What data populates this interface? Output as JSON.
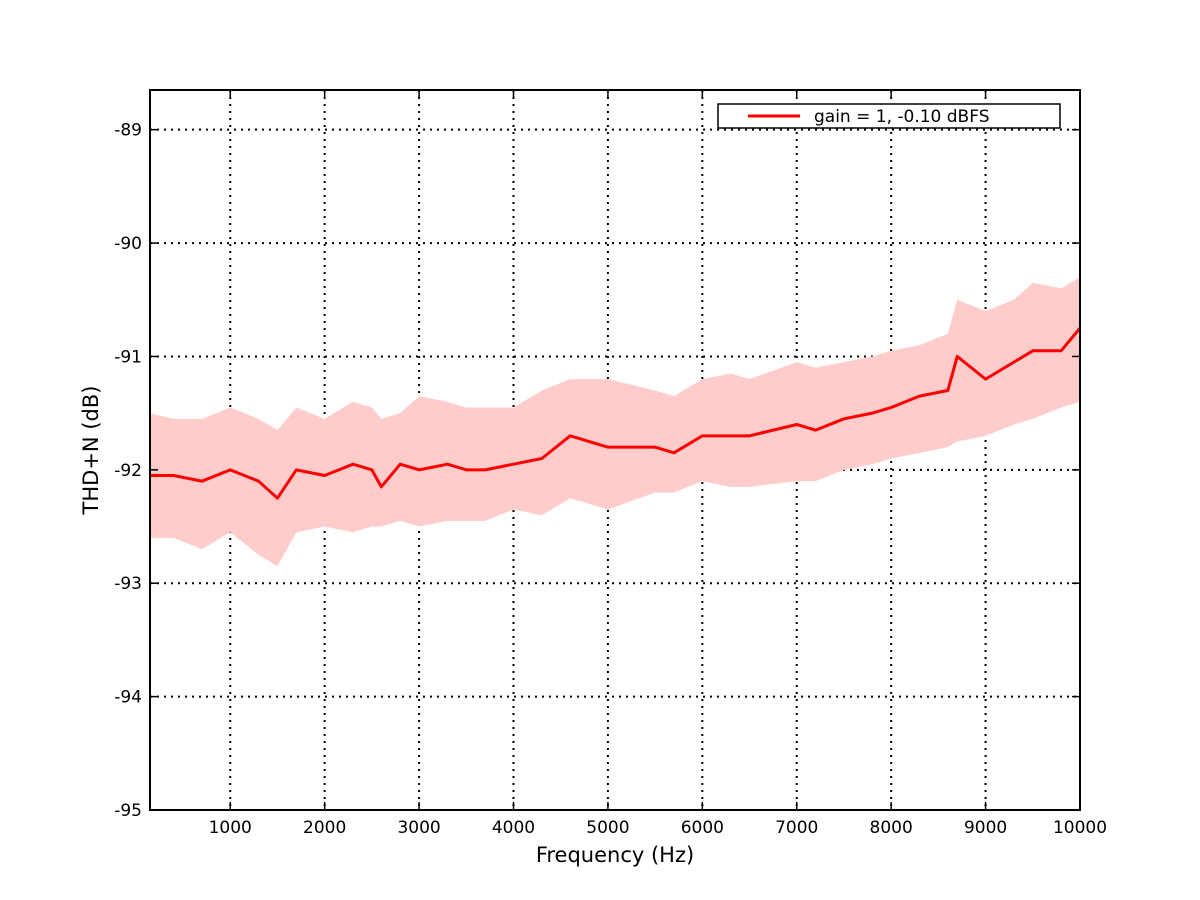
{
  "chart_data": {
    "type": "line",
    "title": "",
    "xlabel": "Frequency (Hz)",
    "ylabel": "THD+N (dB)",
    "xlim": [
      150,
      10000
    ],
    "ylim": [
      -95,
      -88.65
    ],
    "xticks": [
      1000,
      2000,
      3000,
      4000,
      5000,
      6000,
      7000,
      8000,
      9000,
      10000
    ],
    "yticks": [
      -95,
      -94,
      -93,
      -92,
      -91,
      -90,
      -89
    ],
    "grid": true,
    "legend_position": "top-right",
    "series": [
      {
        "name": "gain = 1, -0.10 dBFS",
        "color": "#ff0000",
        "band_color": "#ffcccc",
        "x": [
          150,
          400,
          700,
          1000,
          1300,
          1500,
          1700,
          2000,
          2300,
          2500,
          2600,
          2800,
          3000,
          3300,
          3500,
          3700,
          4000,
          4300,
          4600,
          5000,
          5500,
          5700,
          6000,
          6300,
          6500,
          7000,
          7200,
          7500,
          7800,
          8000,
          8300,
          8600,
          8700,
          9000,
          9300,
          9500,
          9800,
          10000
        ],
        "y": [
          -92.05,
          -92.05,
          -92.1,
          -92.0,
          -92.1,
          -92.25,
          -92.0,
          -92.05,
          -91.95,
          -92.0,
          -92.15,
          -91.95,
          -92.0,
          -91.95,
          -92.0,
          -92.0,
          -91.95,
          -91.9,
          -91.7,
          -91.8,
          -91.8,
          -91.85,
          -91.7,
          -91.7,
          -91.7,
          -91.6,
          -91.65,
          -91.55,
          -91.5,
          -91.45,
          -91.35,
          -91.3,
          -91.0,
          -91.2,
          -91.05,
          -90.95,
          -90.95,
          -90.75
        ],
        "y_lower": [
          -92.6,
          -92.6,
          -92.7,
          -92.55,
          -92.75,
          -92.85,
          -92.55,
          -92.5,
          -92.55,
          -92.5,
          -92.5,
          -92.45,
          -92.5,
          -92.45,
          -92.45,
          -92.45,
          -92.35,
          -92.4,
          -92.25,
          -92.35,
          -92.2,
          -92.2,
          -92.1,
          -92.15,
          -92.15,
          -92.1,
          -92.1,
          -92.0,
          -91.95,
          -91.9,
          -91.85,
          -91.8,
          -91.75,
          -91.7,
          -91.6,
          -91.55,
          -91.45,
          -91.4
        ],
        "y_upper": [
          -91.5,
          -91.55,
          -91.55,
          -91.45,
          -91.55,
          -91.65,
          -91.45,
          -91.55,
          -91.4,
          -91.45,
          -91.55,
          -91.5,
          -91.35,
          -91.4,
          -91.45,
          -91.45,
          -91.45,
          -91.3,
          -91.2,
          -91.2,
          -91.3,
          -91.35,
          -91.2,
          -91.15,
          -91.2,
          -91.05,
          -91.1,
          -91.05,
          -91.0,
          -90.95,
          -90.9,
          -90.8,
          -90.5,
          -90.6,
          -90.5,
          -90.35,
          -90.4,
          -90.3
        ]
      }
    ]
  }
}
